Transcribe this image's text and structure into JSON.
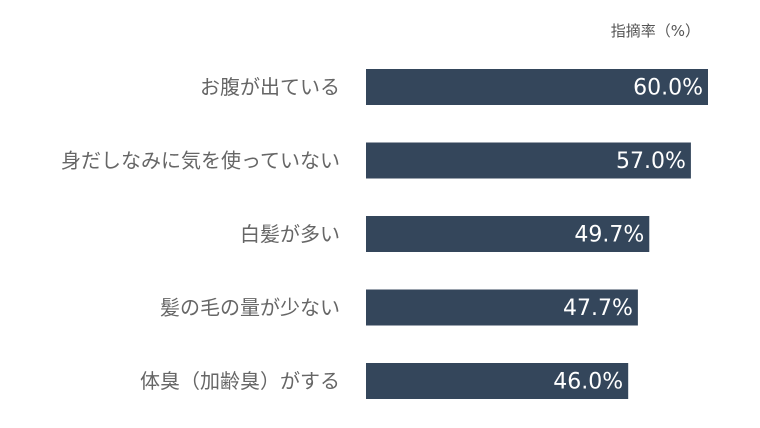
{
  "chart_data": {
    "type": "bar",
    "orientation": "horizontal",
    "unit_label": "指摘率（%）",
    "categories": [
      "お腹が出ている",
      "身だしなみに気を使っていない",
      "白髪が多い",
      "髪の毛の量が少ない",
      "体臭（加齢臭）がする"
    ],
    "values": [
      60.0,
      57.0,
      49.7,
      47.7,
      46.0
    ],
    "value_labels": [
      "60.0%",
      "57.0%",
      "49.7%",
      "47.7%",
      "46.0%"
    ],
    "xlim": [
      0,
      60
    ],
    "grid": false,
    "bar_color": "#34465b",
    "value_label_color": "#ffffff",
    "category_label_color": "#666666"
  }
}
